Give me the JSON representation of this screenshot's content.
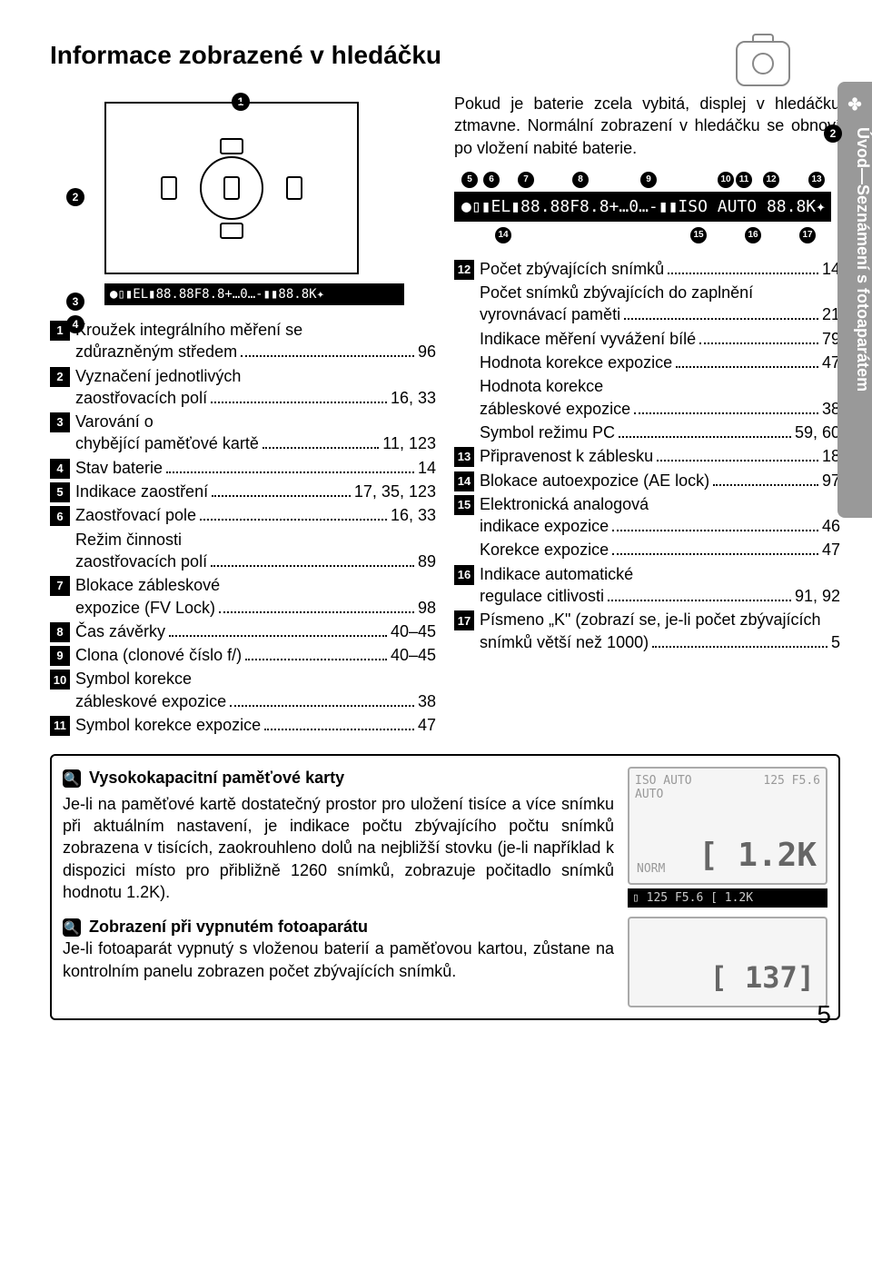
{
  "title": "Informace zobrazené v hledáčku",
  "side_tab": "Úvod—Seznámení s fotoaparátem",
  "battery_note": "Pokud je baterie zcela vybitá, displej v hledáčku ztmavne. Normální zobrazení v hledáčku se obnoví po vložení nabité baterie.",
  "left_items": [
    {
      "n": "1",
      "label": "Kroužek integrálního měření se zdůrazněným středem",
      "page": "96"
    },
    {
      "n": "2",
      "label": "Vyznačení jednotlivých zaostřovacích polí",
      "page": "16, 33"
    },
    {
      "n": "3",
      "label": "Varování o chybějící paměťové kartě",
      "page": "11, 123"
    },
    {
      "n": "4",
      "label": "Stav baterie",
      "page": "14"
    },
    {
      "n": "5",
      "label": "Indikace zaostření",
      "page": "17, 35, 123"
    },
    {
      "n": "6",
      "label": "Zaostřovací pole",
      "page": "16, 33"
    },
    {
      "n": "",
      "label": "Režim činnosti zaostřovacích polí",
      "page": "89"
    },
    {
      "n": "7",
      "label": "Blokace zábleskové expozice (FV Lock)",
      "page": "98"
    },
    {
      "n": "8",
      "label": "Čas závěrky",
      "page": "40–45"
    },
    {
      "n": "9",
      "label": "Clona (clonové číslo f/)",
      "page": "40–45"
    },
    {
      "n": "10",
      "label": "Symbol korekce zábleskové expozice",
      "page": "38"
    },
    {
      "n": "11",
      "label": "Symbol korekce expozice",
      "page": "47"
    }
  ],
  "right_items": [
    {
      "n": "12",
      "label": "Počet zbývajících snímků",
      "page": "14"
    },
    {
      "n": "",
      "label": "Počet snímků zbývajících do zaplnění vyrovnávací paměti",
      "page": "21"
    },
    {
      "n": "",
      "label": "Indikace měření vyvážení bílé",
      "page": "79"
    },
    {
      "n": "",
      "label": "Hodnota korekce expozice",
      "page": "47"
    },
    {
      "n": "",
      "label": "Hodnota korekce zábleskové expozice",
      "page": "38"
    },
    {
      "n": "",
      "label": "Symbol režimu PC",
      "page": "59, 60"
    },
    {
      "n": "13",
      "label": "Připravenost k záblesku",
      "page": "18"
    },
    {
      "n": "14",
      "label": "Blokace autoexpozice (AE lock)",
      "page": "97"
    },
    {
      "n": "15",
      "label": "Elektronická analogová indikace expozice",
      "page": "46"
    },
    {
      "n": "",
      "label": "Korekce expozice",
      "page": "47"
    },
    {
      "n": "16",
      "label": "Indikace automatické regulace citlivosti",
      "page": "91, 92"
    },
    {
      "n": "17",
      "label": "Písmeno „K\" (zobrazí se, je-li počet zbývajících snímků větší než 1000)",
      "page": "5"
    }
  ],
  "vf_strip_small": "●▯▮EL▮88.88F8.8+…0…-▮▮88.8K✦",
  "vf_strip_big": "●▯▮EL▮88.88F8.8+…0…-▮▮ISO AUTO 88.8K✦",
  "top_callouts": [
    "5",
    "6",
    "7",
    "8",
    "9",
    "10",
    "11",
    "12",
    "13"
  ],
  "bottom_callouts": [
    "14",
    "15",
    "16",
    "17"
  ],
  "diagram_callouts": [
    "1",
    "2",
    "3",
    "4",
    "2"
  ],
  "info1": {
    "icon": "🔍",
    "title": "Vysokokapacitní paměťové karty",
    "text": "Je-li na paměťové kartě dostatečný prostor pro uložení tisíce a více snímku při aktuálním nastavení, je indikace počtu zbývajícího počtu snímků zobrazena v tisících, zaokrouhleno dolů na nejbližší stovku (je-li například k dispozici místo pro přibližně 1260 snímků, zobrazuje počitadlo snímků hodnotu 1.2K).",
    "lcd_top_left": "ISO AUTO",
    "lcd_top_right": "125  F5.6",
    "lcd_mid_left": "AUTO",
    "lcd_bottom_left": "NORM",
    "lcd_big": "[ 1.2K",
    "lcd_bar": "▯ 125 F5.6        [ 1.2K"
  },
  "info2": {
    "icon": "🔍",
    "title": "Zobrazení při vypnutém fotoaparátu",
    "text": "Je-li fotoaparát vypnutý s vloženou baterií a paměťovou kartou, zůstane na kontrolním panelu zobrazen počet zbývajících snímků.",
    "lcd_big": "[ 137]"
  },
  "page_number": "5"
}
